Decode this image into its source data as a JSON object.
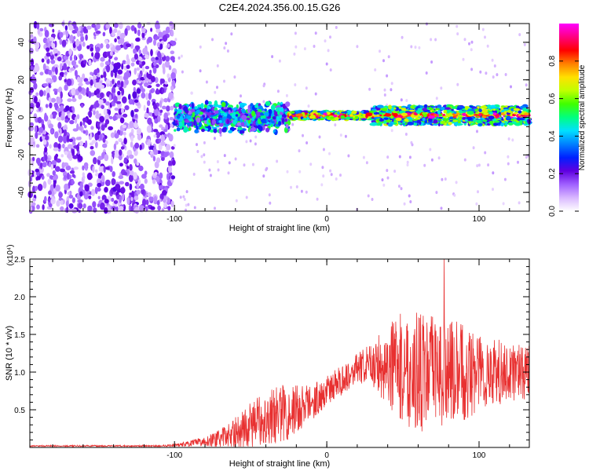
{
  "title": "C2E4.2024.356.00.15.G26",
  "chart_data": [
    {
      "type": "heatmap",
      "title": "C2E4.2024.356.00.15.G26",
      "xlabel": "Height of straight line (km)",
      "ylabel": "Frequency (Hz)",
      "xlim": [
        -195,
        133
      ],
      "ylim": [
        -50,
        50
      ],
      "x_ticks": [
        "-100",
        "0",
        "100"
      ],
      "y_ticks": [
        "-40",
        "-20",
        "0",
        "20",
        "40"
      ],
      "colorbar": {
        "label": "Normalized spectral amplitude",
        "range": [
          0,
          1
        ],
        "ticks": [
          "0.0",
          "0.2",
          "0.4",
          "0.6",
          "0.8"
        ],
        "colors": [
          "#ffffff",
          "#d9b8ff",
          "#a060ff",
          "#6000e0",
          "#0020ff",
          "#0080ff",
          "#00e0ff",
          "#00ff80",
          "#40ff00",
          "#c0ff00",
          "#ffe000",
          "#ff8000",
          "#ff0000",
          "#ff0080",
          "#ff00ff"
        ]
      },
      "regions": [
        {
          "description": "noise",
          "x_range": [
            -195,
            -100
          ],
          "freq_range": [
            -50,
            50
          ],
          "amplitude": 0.15
        },
        {
          "description": "signal band",
          "x_range": [
            -100,
            -25
          ],
          "freq_center": 0,
          "freq_halfwidth": 8,
          "amplitude": 0.4
        },
        {
          "description": "signal line",
          "x_range": [
            -25,
            133
          ],
          "freq_center": 1,
          "freq_halfwidth": 2,
          "amplitude": 0.9
        }
      ]
    },
    {
      "type": "line",
      "xlabel": "Height of straight line (km)",
      "ylabel": "SNR (10 * v/v)",
      "y_multiplier": "(x10⁴)",
      "xlim": [
        -195,
        133
      ],
      "ylim": [
        0,
        2.5
      ],
      "x_ticks": [
        "-100",
        "0",
        "100"
      ],
      "y_ticks": [
        "0.5",
        "1.0",
        "1.5",
        "2.0",
        "2.5"
      ],
      "color": "#e83030",
      "envelope": {
        "x": [
          -195,
          -110,
          -100,
          -90,
          -80,
          -70,
          -60,
          -50,
          -40,
          -30,
          -20,
          -10,
          0,
          10,
          20,
          30,
          40,
          50,
          60,
          70,
          80,
          90,
          100,
          110,
          120,
          133
        ],
        "baseline": [
          0.02,
          0.02,
          0.03,
          0.05,
          0.08,
          0.12,
          0.2,
          0.3,
          0.4,
          0.45,
          0.5,
          0.6,
          0.75,
          0.9,
          1.05,
          1.1,
          1.1,
          1.05,
          1.0,
          1.0,
          1.0,
          1.0,
          1.0,
          1.0,
          1.0,
          1.0
        ],
        "spread": [
          0.01,
          0.01,
          0.02,
          0.04,
          0.06,
          0.12,
          0.2,
          0.3,
          0.35,
          0.4,
          0.35,
          0.25,
          0.2,
          0.2,
          0.2,
          0.3,
          0.55,
          0.75,
          0.8,
          0.75,
          0.7,
          0.65,
          0.55,
          0.45,
          0.4,
          0.35
        ]
      },
      "peak": {
        "x": 77,
        "y": 2.5
      }
    }
  ]
}
